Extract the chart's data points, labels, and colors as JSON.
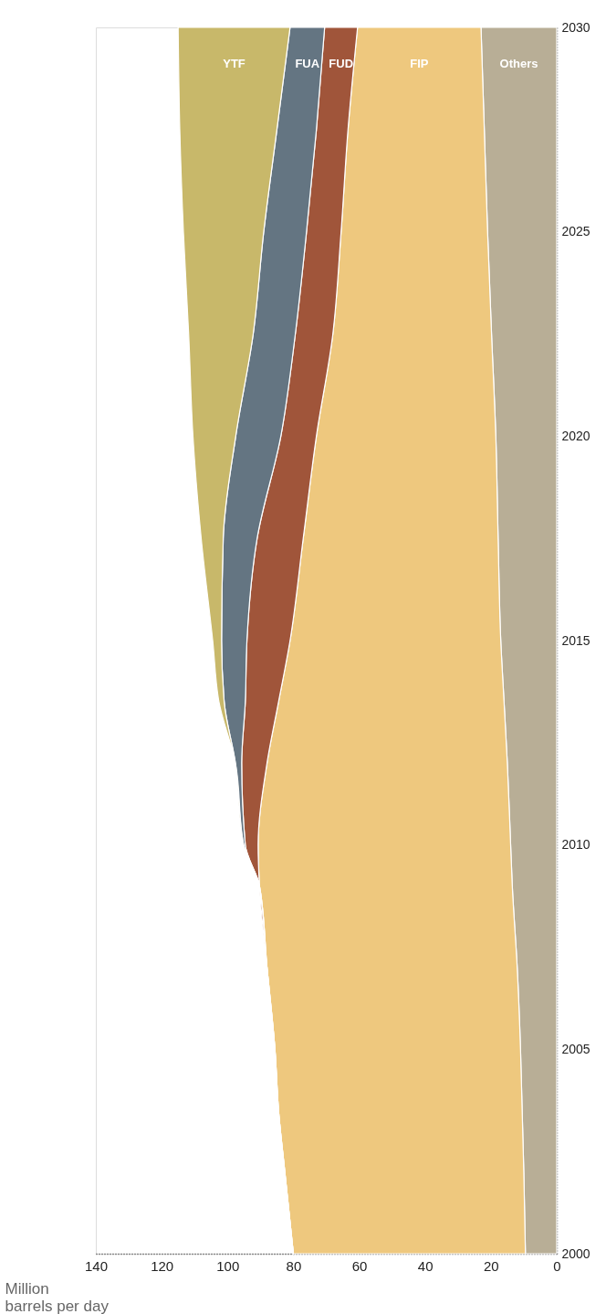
{
  "chart_data": {
    "type": "area",
    "stacked": true,
    "xlabel": "Million barrels per day",
    "x": [
      2000,
      2002,
      2003.5,
      2005,
      2007,
      2009,
      2010,
      2012,
      2013.5,
      2015,
      2017.5,
      2020,
      2022.5,
      2025,
      2027.5,
      2030
    ],
    "series": [
      {
        "name": "Others",
        "color": "#b8ae96",
        "values": [
          9.5,
          10,
          10.5,
          11,
          12,
          13.5,
          14,
          15,
          16,
          17,
          17.8,
          18.5,
          19.8,
          21,
          22,
          23
        ]
      },
      {
        "name": "FIP",
        "color": "#eec87e",
        "values": [
          70.5,
          72.6,
          74,
          74.6,
          76,
          76.8,
          76.7,
          73,
          68.5,
          64,
          59.2,
          54.5,
          48.2,
          44.5,
          41.4,
          37.5
        ]
      },
      {
        "name": "FUD",
        "color": "#a0553a",
        "values": [
          0,
          0,
          0,
          0,
          0,
          0,
          3.9,
          7.7,
          10.1,
          13.1,
          14,
          10.8,
          11.4,
          10.5,
          9.6,
          10
        ]
      },
      {
        "name": "FUA",
        "color": "#647582",
        "values": [
          0,
          0,
          0,
          0,
          0,
          0,
          0.5,
          1.9,
          6.4,
          7.7,
          10.3,
          13.7,
          12.8,
          13,
          12,
          10.5
        ]
      },
      {
        "name": "YTF",
        "color": "#c8b86a",
        "values": [
          0,
          0,
          0,
          0,
          0,
          0,
          0,
          0,
          1.6,
          2.7,
          6.7,
          13,
          19.6,
          24.4,
          29.5,
          34
        ]
      }
    ],
    "orientation": "horizontal",
    "ylim": [
      2000,
      2030
    ],
    "yticks": [
      2000,
      2005,
      2010,
      2015,
      2020,
      2025,
      2030
    ],
    "xlim": [
      140,
      0
    ],
    "xticks": [
      0,
      20,
      40,
      60,
      80,
      100,
      120,
      140
    ],
    "grid": false
  }
}
